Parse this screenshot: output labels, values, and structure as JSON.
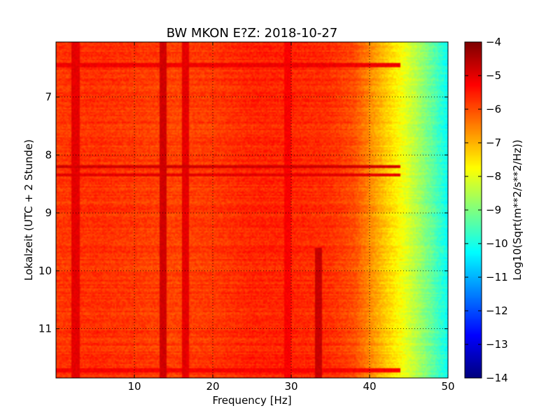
{
  "chart_data": {
    "type": "heatmap",
    "title": "BW MKON E?Z: 2018-10-27",
    "xlabel": "Frequency [Hz]",
    "ylabel": "Lokalzeit (UTC + 2 Stunde)",
    "xlim": [
      0,
      50
    ],
    "ylim": [
      11.85,
      6.05
    ],
    "x_ticks": [
      10,
      20,
      30,
      40,
      50
    ],
    "x_tick_labels": [
      "10",
      "20",
      "30",
      "40",
      "50"
    ],
    "y_ticks": [
      7,
      8,
      9,
      10,
      11
    ],
    "y_tick_labels": [
      "7",
      "8",
      "9",
      "10",
      "11"
    ],
    "grid": true,
    "colormap": "jet",
    "colorbar": {
      "label": "Log10(Sqrt(m**2/s**2/Hz))",
      "range": [
        -14,
        -4
      ],
      "ticks": [
        -4,
        -5,
        -6,
        -7,
        -8,
        -9,
        -10,
        -11,
        -12,
        -13,
        -14
      ],
      "tick_labels": [
        "−4",
        "−5",
        "−6",
        "−7",
        "−8",
        "−9",
        "−10",
        "−11",
        "−12",
        "−13",
        "−14"
      ]
    },
    "spectrum_profile": {
      "frequency_hz": [
        0,
        5,
        10,
        15,
        20,
        25,
        30,
        35,
        38,
        40,
        42,
        44,
        46,
        48,
        50
      ],
      "level": [
        -5.8,
        -5.7,
        -5.8,
        -5.9,
        -5.8,
        -5.6,
        -5.6,
        -5.7,
        -6.0,
        -6.6,
        -7.2,
        -7.8,
        -8.5,
        -9.3,
        -10.2
      ]
    },
    "features": [
      {
        "type": "vertical_band",
        "frequency_hz": 2.5,
        "level": -5.0
      },
      {
        "type": "vertical_band",
        "frequency_hz": 13.6,
        "level": -4.8
      },
      {
        "type": "vertical_band",
        "frequency_hz": 16.6,
        "level": -5.0
      },
      {
        "type": "vertical_band",
        "frequency_hz": 29.5,
        "level": -5.2
      },
      {
        "type": "vertical_band",
        "frequency_hz": 33.5,
        "level": -4.7,
        "time_from": 9.6,
        "time_to": 11.85
      },
      {
        "type": "horizontal_band",
        "time": 6.45,
        "level": -5.1
      },
      {
        "type": "horizontal_band",
        "time": 8.2,
        "level": -4.8
      },
      {
        "type": "horizontal_band",
        "time": 8.35,
        "level": -5.0
      },
      {
        "type": "horizontal_band",
        "time": 11.72,
        "level": -5.2
      }
    ]
  }
}
